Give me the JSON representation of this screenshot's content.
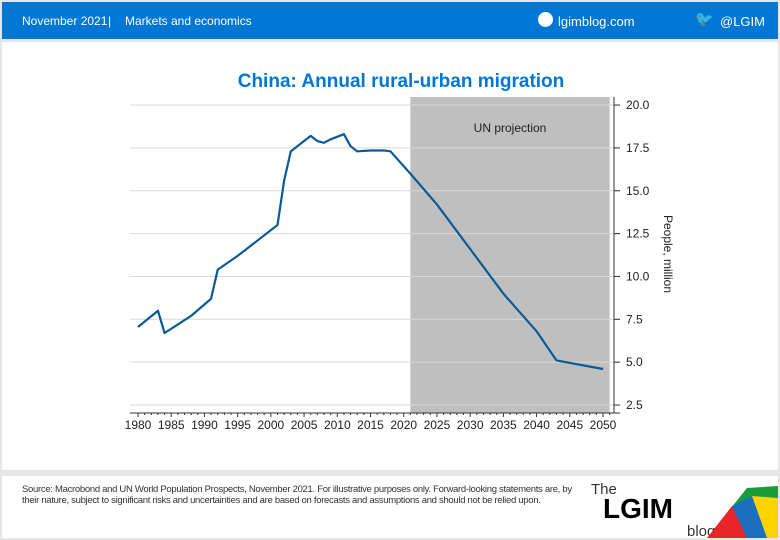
{
  "header": {
    "date": "November 2021",
    "separator": "|",
    "section": "Markets and economics",
    "site": "lgimblog.com",
    "twitter": "@LGIM"
  },
  "footer": {
    "source": "Source: Macrobond and UN World Population Prospects, November 2021. For illustrative purposes only. Forward-looking statements are, by their nature, subject to significant risks and uncertainties and are based on forecasts and assumptions and should not be relied upon.",
    "logo": {
      "the": "The",
      "lgim": "LGIM",
      "blog": "blog"
    }
  },
  "colors": {
    "header": "#0077d4",
    "line": "#0b5a96",
    "shade": "#bfbfbf",
    "title": "#0077d4"
  },
  "chart_data": {
    "type": "line",
    "title": "China: Annual rural-urban migration",
    "ylabel": "People, million",
    "ylim": [
      2.5,
      20
    ],
    "yticks": [
      2.5,
      5.0,
      7.5,
      10.0,
      12.5,
      15.0,
      17.5,
      20.0
    ],
    "xlim": [
      1979,
      2052
    ],
    "xticks": [
      1980,
      1985,
      1990,
      1995,
      2000,
      2005,
      2010,
      2015,
      2020,
      2025,
      2030,
      2035,
      2040,
      2045,
      2050
    ],
    "grid": true,
    "shaded_region": {
      "label": "UN projection",
      "from": 2021,
      "to": 2051
    },
    "series": [
      {
        "name": "Annual rural-urban migration",
        "x": [
          1980,
          1983,
          1984,
          1986,
          1988,
          1991,
          1992,
          1995,
          1997,
          1999,
          2001,
          2002,
          2003,
          2005,
          2006,
          2007,
          2008,
          2009,
          2011,
          2012,
          2013,
          2015,
          2017,
          2018,
          2021,
          2025,
          2030,
          2035,
          2040,
          2043,
          2050
        ],
        "y": [
          7.05,
          8.0,
          6.7,
          7.2,
          7.7,
          8.7,
          10.4,
          11.2,
          11.8,
          12.4,
          13.0,
          15.6,
          17.3,
          17.9,
          18.2,
          17.9,
          17.8,
          18.0,
          18.3,
          17.6,
          17.3,
          17.35,
          17.35,
          17.3,
          16.0,
          14.2,
          11.6,
          9.0,
          6.8,
          5.1,
          4.6
        ]
      }
    ]
  }
}
